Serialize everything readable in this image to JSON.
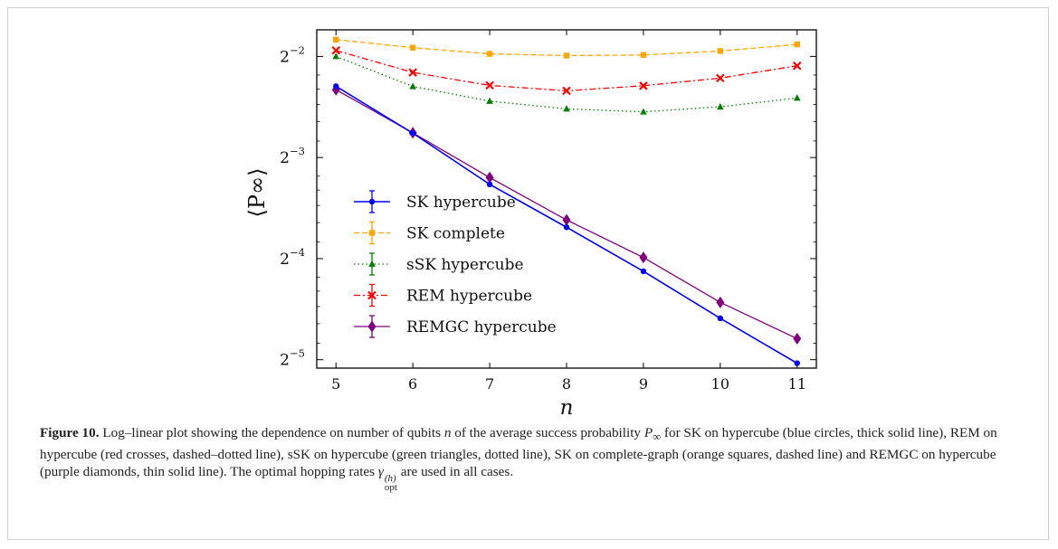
{
  "chart_data": {
    "type": "line",
    "xlabel": "n",
    "ylabel": "⟨P∞⟩",
    "x": [
      5,
      6,
      7,
      8,
      9,
      10,
      11
    ],
    "xlim": [
      4.75,
      11.25
    ],
    "xticks": [
      5,
      6,
      7,
      8,
      9,
      10,
      11
    ],
    "yscale": "log2",
    "ylim": [
      0.0295,
      0.3
    ],
    "yticks": [
      {
        "value": 0.25,
        "base": "2",
        "exp": "−2"
      },
      {
        "value": 0.125,
        "base": "2",
        "exp": "−3"
      },
      {
        "value": 0.0625,
        "base": "2",
        "exp": "−4"
      },
      {
        "value": 0.03125,
        "base": "2",
        "exp": "−5"
      }
    ],
    "grid": false,
    "legend_position": "lower-left",
    "series": [
      {
        "name": "SK hypercube",
        "color": "#0000ff",
        "marker": "circle",
        "dash": "solid",
        "width": 1.6,
        "values": [
          0.2038,
          0.1477,
          0.104,
          0.0775,
          0.0573,
          0.0415,
          0.0305
        ]
      },
      {
        "name": "SK complete",
        "color": "#ffa500",
        "marker": "square",
        "dash": "dashed",
        "width": 1.3,
        "values": [
          0.2805,
          0.2655,
          0.2545,
          0.2515,
          0.2525,
          0.2595,
          0.2715
        ]
      },
      {
        "name": "sSK hypercube",
        "color": "#008000",
        "marker": "triangle",
        "dash": "dotted",
        "width": 1.3,
        "values": [
          0.25,
          0.2035,
          0.184,
          0.1745,
          0.171,
          0.177,
          0.188
        ]
      },
      {
        "name": "REM hypercube",
        "color": "#ff0000",
        "marker": "cross",
        "dash": "dashdot",
        "width": 1.3,
        "values": [
          0.2605,
          0.224,
          0.205,
          0.1975,
          0.2045,
          0.2155,
          0.2345
        ]
      },
      {
        "name": "REMGC hypercube",
        "color": "#800080",
        "marker": "diamond",
        "dash": "solid",
        "width": 1.3,
        "values": [
          0.199,
          0.148,
          0.109,
          0.0815,
          0.063,
          0.0463,
          0.0361
        ]
      }
    ]
  },
  "caption": {
    "label": "Figure 10.",
    "p1": " Log–linear plot showing the dependence on number of qubits ",
    "n": "n",
    "p2": " of the average success probability ",
    "P": "P",
    "sub": "∞",
    "p3": " for SK on hypercube (blue circles, thick solid line), REM on hypercube (red crosses, dashed–dotted line), sSK on hypercube (green triangles, dotted line), SK on complete-graph (orange squares, dashed line) and REMGC on hypercube (purple diamonds, thin solid line). The optimal hopping rates ",
    "gamma": "γ",
    "gsup": "(h)",
    "gsub": "opt",
    "p4": " are used in all cases."
  }
}
